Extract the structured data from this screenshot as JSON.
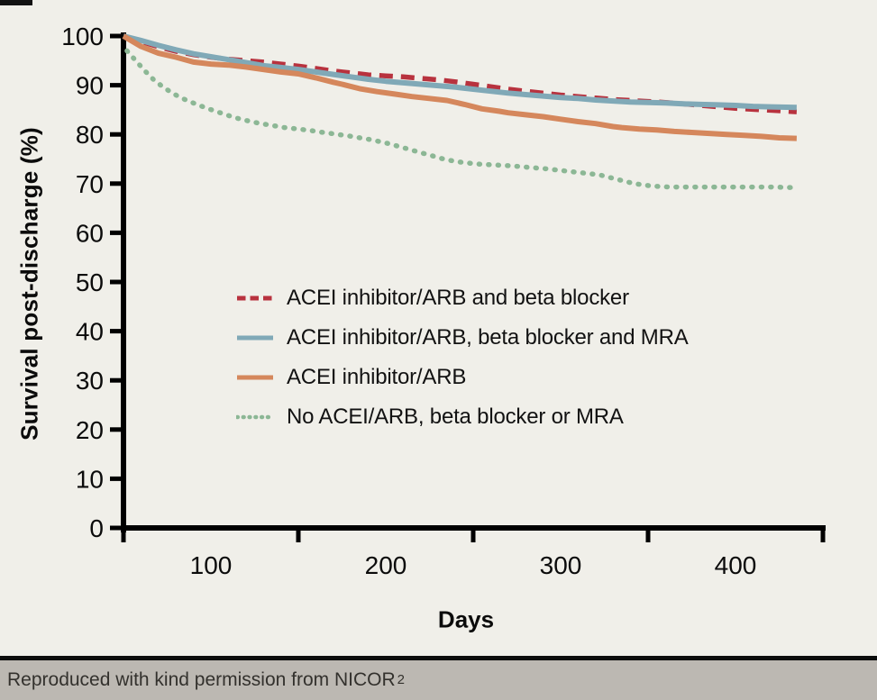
{
  "figure": {
    "background": "#f0efe9",
    "caption": {
      "text": "Reproduced with kind permission from NICOR",
      "superscript": "2"
    },
    "caption_bar_color": "#bcb8b2",
    "axis_color": "#000000",
    "y_axis": {
      "title": "Survival post-discharge (%)",
      "ticks": [
        100,
        90,
        80,
        70,
        60,
        50,
        40,
        30,
        20,
        10,
        0
      ]
    },
    "x_axis": {
      "title": "Days",
      "tick_days": [
        50,
        150,
        250,
        350,
        450
      ],
      "labels": [
        {
          "text": "100",
          "day": 100
        },
        {
          "text": "200",
          "day": 200
        },
        {
          "text": "300",
          "day": 300
        },
        {
          "text": "400",
          "day": 400
        }
      ]
    },
    "legend_position": "center-left of plot"
  },
  "chart_data": {
    "type": "line",
    "title": "",
    "xlabel": "Days",
    "ylabel": "Survival post-discharge (%)",
    "xlim": [
      50,
      450
    ],
    "ylim": [
      0,
      100
    ],
    "grid": false,
    "series": [
      {
        "name": "ACEI inhibitor/ARB and beta blocker",
        "color": "#b8323e",
        "line_style": "dashed",
        "x": [
          50,
          60,
          70,
          80,
          90,
          100,
          110,
          120,
          130,
          140,
          150,
          160,
          170,
          180,
          190,
          200,
          210,
          220,
          230,
          240,
          250,
          260,
          270,
          280,
          290,
          300,
          310,
          320,
          330,
          340,
          350,
          360,
          370,
          380,
          390,
          400,
          410,
          420,
          435
        ],
        "y": [
          100,
          98.9,
          97.8,
          96.9,
          96.2,
          95.7,
          95.3,
          95.0,
          94.7,
          94.3,
          93.9,
          93.4,
          92.9,
          92.5,
          92.1,
          91.9,
          91.7,
          91.4,
          91.1,
          90.7,
          90.2,
          89.7,
          89.2,
          88.8,
          88.4,
          88.0,
          87.7,
          87.4,
          87.1,
          86.9,
          86.7,
          86.5,
          86.2,
          85.9,
          85.6,
          85.3,
          85.1,
          84.9,
          84.6
        ]
      },
      {
        "name": "ACEI inhibitor/ARB, beta blocker and MRA",
        "color": "#80a9b7",
        "line_style": "solid",
        "x": [
          50,
          60,
          70,
          80,
          90,
          100,
          110,
          120,
          130,
          140,
          150,
          160,
          170,
          180,
          190,
          200,
          210,
          220,
          230,
          240,
          250,
          260,
          270,
          280,
          290,
          300,
          310,
          320,
          330,
          340,
          350,
          360,
          370,
          380,
          390,
          400,
          410,
          420,
          435
        ],
        "y": [
          100,
          99.1,
          98.1,
          97.2,
          96.4,
          95.8,
          95.2,
          94.6,
          94.0,
          93.6,
          93.2,
          92.7,
          92.2,
          91.7,
          91.2,
          90.8,
          90.5,
          90.2,
          89.9,
          89.6,
          89.2,
          88.8,
          88.4,
          88.1,
          87.8,
          87.5,
          87.3,
          87.0,
          86.8,
          86.6,
          86.5,
          86.4,
          86.2,
          86.1,
          86.0,
          85.9,
          85.7,
          85.6,
          85.5
        ]
      },
      {
        "name": "ACEI inhibitor/ARB",
        "color": "#d5875c",
        "line_style": "solid",
        "x": [
          50,
          60,
          70,
          80,
          90,
          100,
          110,
          120,
          130,
          140,
          150,
          160,
          170,
          175,
          185,
          195,
          205,
          215,
          225,
          235,
          245,
          255,
          265,
          270,
          280,
          290,
          300,
          310,
          320,
          330,
          335,
          345,
          355,
          365,
          375,
          385,
          395,
          405,
          415,
          425,
          435
        ],
        "y": [
          100,
          97.9,
          96.5,
          95.7,
          94.7,
          94.3,
          94.1,
          93.7,
          93.2,
          92.7,
          92.3,
          91.5,
          90.6,
          90.2,
          89.3,
          88.7,
          88.2,
          87.7,
          87.3,
          86.9,
          86.1,
          85.2,
          84.7,
          84.4,
          84.0,
          83.6,
          83.1,
          82.6,
          82.2,
          81.6,
          81.4,
          81.1,
          80.9,
          80.6,
          80.4,
          80.2,
          80.0,
          79.8,
          79.6,
          79.3,
          79.2
        ]
      },
      {
        "name": "No ACEI/ARB, beta blocker or MRA",
        "color": "#8cb795",
        "line_style": "dotted",
        "x": [
          52,
          57,
          62,
          67,
          72,
          77,
          82,
          87,
          92,
          97,
          102,
          107,
          112,
          117,
          122,
          127,
          132,
          137,
          142,
          147,
          152,
          157,
          162,
          167,
          172,
          177,
          182,
          187,
          192,
          197,
          202,
          207,
          212,
          217,
          222,
          227,
          232,
          237,
          242,
          247,
          252,
          262,
          272,
          282,
          292,
          302,
          312,
          322,
          332,
          342,
          352,
          362,
          372,
          382,
          392,
          402,
          412,
          422,
          432
        ],
        "y": [
          97,
          95,
          93,
          91.2,
          89.8,
          88.6,
          87.6,
          86.8,
          86.1,
          85.4,
          84.8,
          84.2,
          83.6,
          83.1,
          82.7,
          82.3,
          82.0,
          81.7,
          81.4,
          81.2,
          81.0,
          80.8,
          80.5,
          80.3,
          80.0,
          79.8,
          79.5,
          79.2,
          78.9,
          78.5,
          78.1,
          77.6,
          77.1,
          76.6,
          76.1,
          75.6,
          75.1,
          74.7,
          74.4,
          74.2,
          74.0,
          73.8,
          73.6,
          73.3,
          73.0,
          72.6,
          72.2,
          71.8,
          70.9,
          70.0,
          69.5,
          69.3,
          69.3,
          69.3,
          69.3,
          69.3,
          69.3,
          69.3,
          69.2
        ]
      }
    ]
  }
}
